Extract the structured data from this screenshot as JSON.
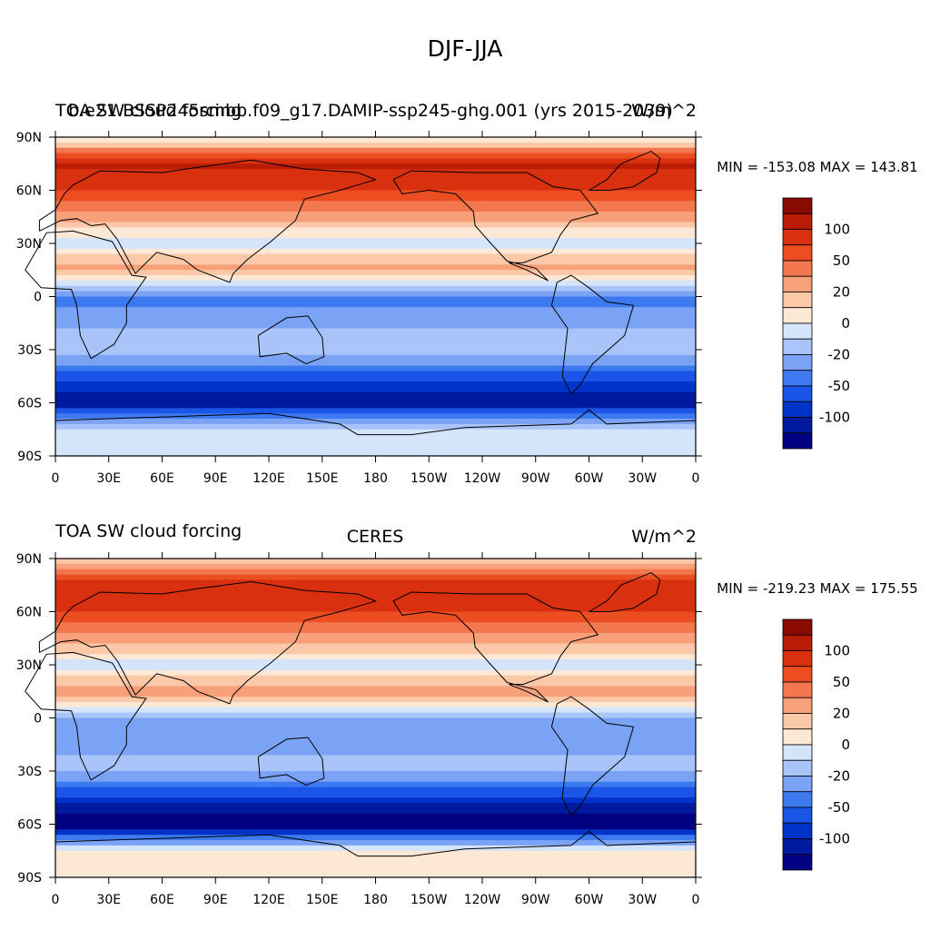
{
  "page_title": "DJF-JJA",
  "colors": {
    "levels": [
      "#000080",
      "#001a9e",
      "#0033c8",
      "#1a55e8",
      "#3d7af0",
      "#7aa3f5",
      "#a9c4f8",
      "#d4e4fb",
      "#fde8d6",
      "#fbc9a8",
      "#f7a07a",
      "#f3774e",
      "#ec4e22",
      "#d9300f",
      "#b81c05",
      "#8a0b00"
    ],
    "land_outline": "#000000",
    "missing": "#ffffff"
  },
  "chart_data": [
    {
      "type": "heatmap",
      "title_left": "TOA SW cloud forcing",
      "title_center": "b.e21.BSSP245smbb.f09_g17.DAMIP-ssp245-ghg.001 (yrs 2015-2039)",
      "title_right": "W/m^2",
      "stats": "MIN = -153.08 MAX = 143.81",
      "projection": "cylindrical equidistant, centered 180",
      "xlim": [
        0,
        360
      ],
      "ylim": [
        -90,
        90
      ],
      "x_tick_labels": [
        "0",
        "30E",
        "60E",
        "90E",
        "120E",
        "150E",
        "180",
        "150W",
        "120W",
        "90W",
        "60W",
        "30W",
        "0"
      ],
      "y_tick_labels": [
        "90N",
        "60N",
        "30N",
        "0",
        "30S",
        "60S",
        "90S"
      ],
      "colorbar": {
        "labels": [
          "100",
          "50",
          "20",
          "0",
          "-20",
          "-50",
          "-100"
        ]
      },
      "zonal_profile": {
        "lat": [
          90,
          75,
          60,
          45,
          30,
          15,
          0,
          -15,
          -30,
          -45,
          -60,
          -75,
          -90
        ],
        "value": [
          0,
          110,
          90,
          40,
          -10,
          45,
          -60,
          -40,
          -20,
          -80,
          -120,
          -10,
          -10
        ]
      }
    },
    {
      "type": "heatmap",
      "title_left": "TOA SW cloud forcing",
      "title_center": "CERES",
      "title_right": "W/m^2",
      "stats": "MIN = -219.23 MAX = 175.55",
      "projection": "cylindrical equidistant, centered 180",
      "xlim": [
        0,
        360
      ],
      "ylim": [
        -90,
        90
      ],
      "x_tick_labels": [
        "0",
        "30E",
        "60E",
        "90E",
        "120E",
        "150E",
        "180",
        "150W",
        "120W",
        "90W",
        "60W",
        "30W",
        "0"
      ],
      "y_tick_labels": [
        "90N",
        "60N",
        "30N",
        "0",
        "30S",
        "60S",
        "90S"
      ],
      "colorbar": {
        "labels": [
          "100",
          "50",
          "20",
          "0",
          "-20",
          "-50",
          "-100"
        ]
      },
      "zonal_profile": {
        "lat": [
          90,
          75,
          60,
          45,
          30,
          15,
          0,
          -15,
          -30,
          -45,
          -60,
          -75,
          -90
        ],
        "value": [
          10,
          100,
          90,
          45,
          -10,
          50,
          -40,
          -40,
          -30,
          -90,
          -150,
          10,
          10
        ]
      }
    }
  ]
}
